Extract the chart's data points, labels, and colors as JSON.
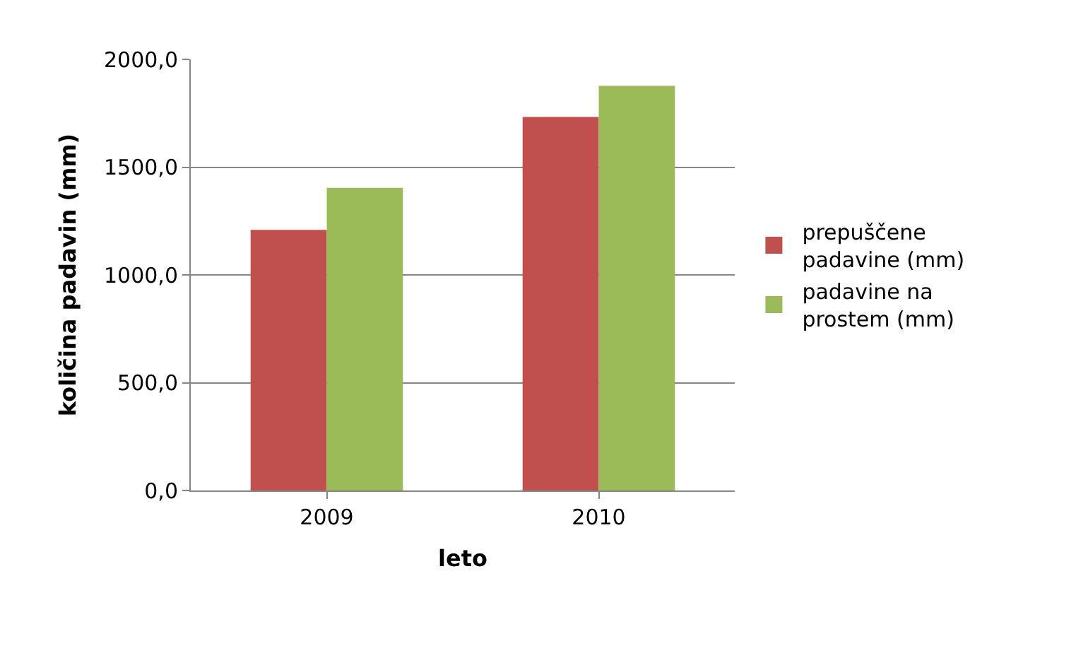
{
  "chart_data": {
    "type": "bar",
    "xlabel": "leto",
    "ylabel": "količina padavin (mm)",
    "categories": [
      "2009",
      "2010"
    ],
    "series": [
      {
        "name": "prepuščene padavine (mm)",
        "color": "#c0504d",
        "values": [
          1209,
          1733
        ]
      },
      {
        "name": "padavine na prostem (mm)",
        "color": "#9bbb59",
        "values": [
          1404,
          1877
        ]
      }
    ],
    "ylim": [
      0,
      2000
    ],
    "yticks": [
      {
        "value": 0,
        "label": "0,0"
      },
      {
        "value": 500,
        "label": "500,0"
      },
      {
        "value": 1000,
        "label": "1000,0"
      },
      {
        "value": 1500,
        "label": "1500,0"
      },
      {
        "value": 2000,
        "label": "2000,0"
      }
    ],
    "grid": "y",
    "legend": "right"
  }
}
